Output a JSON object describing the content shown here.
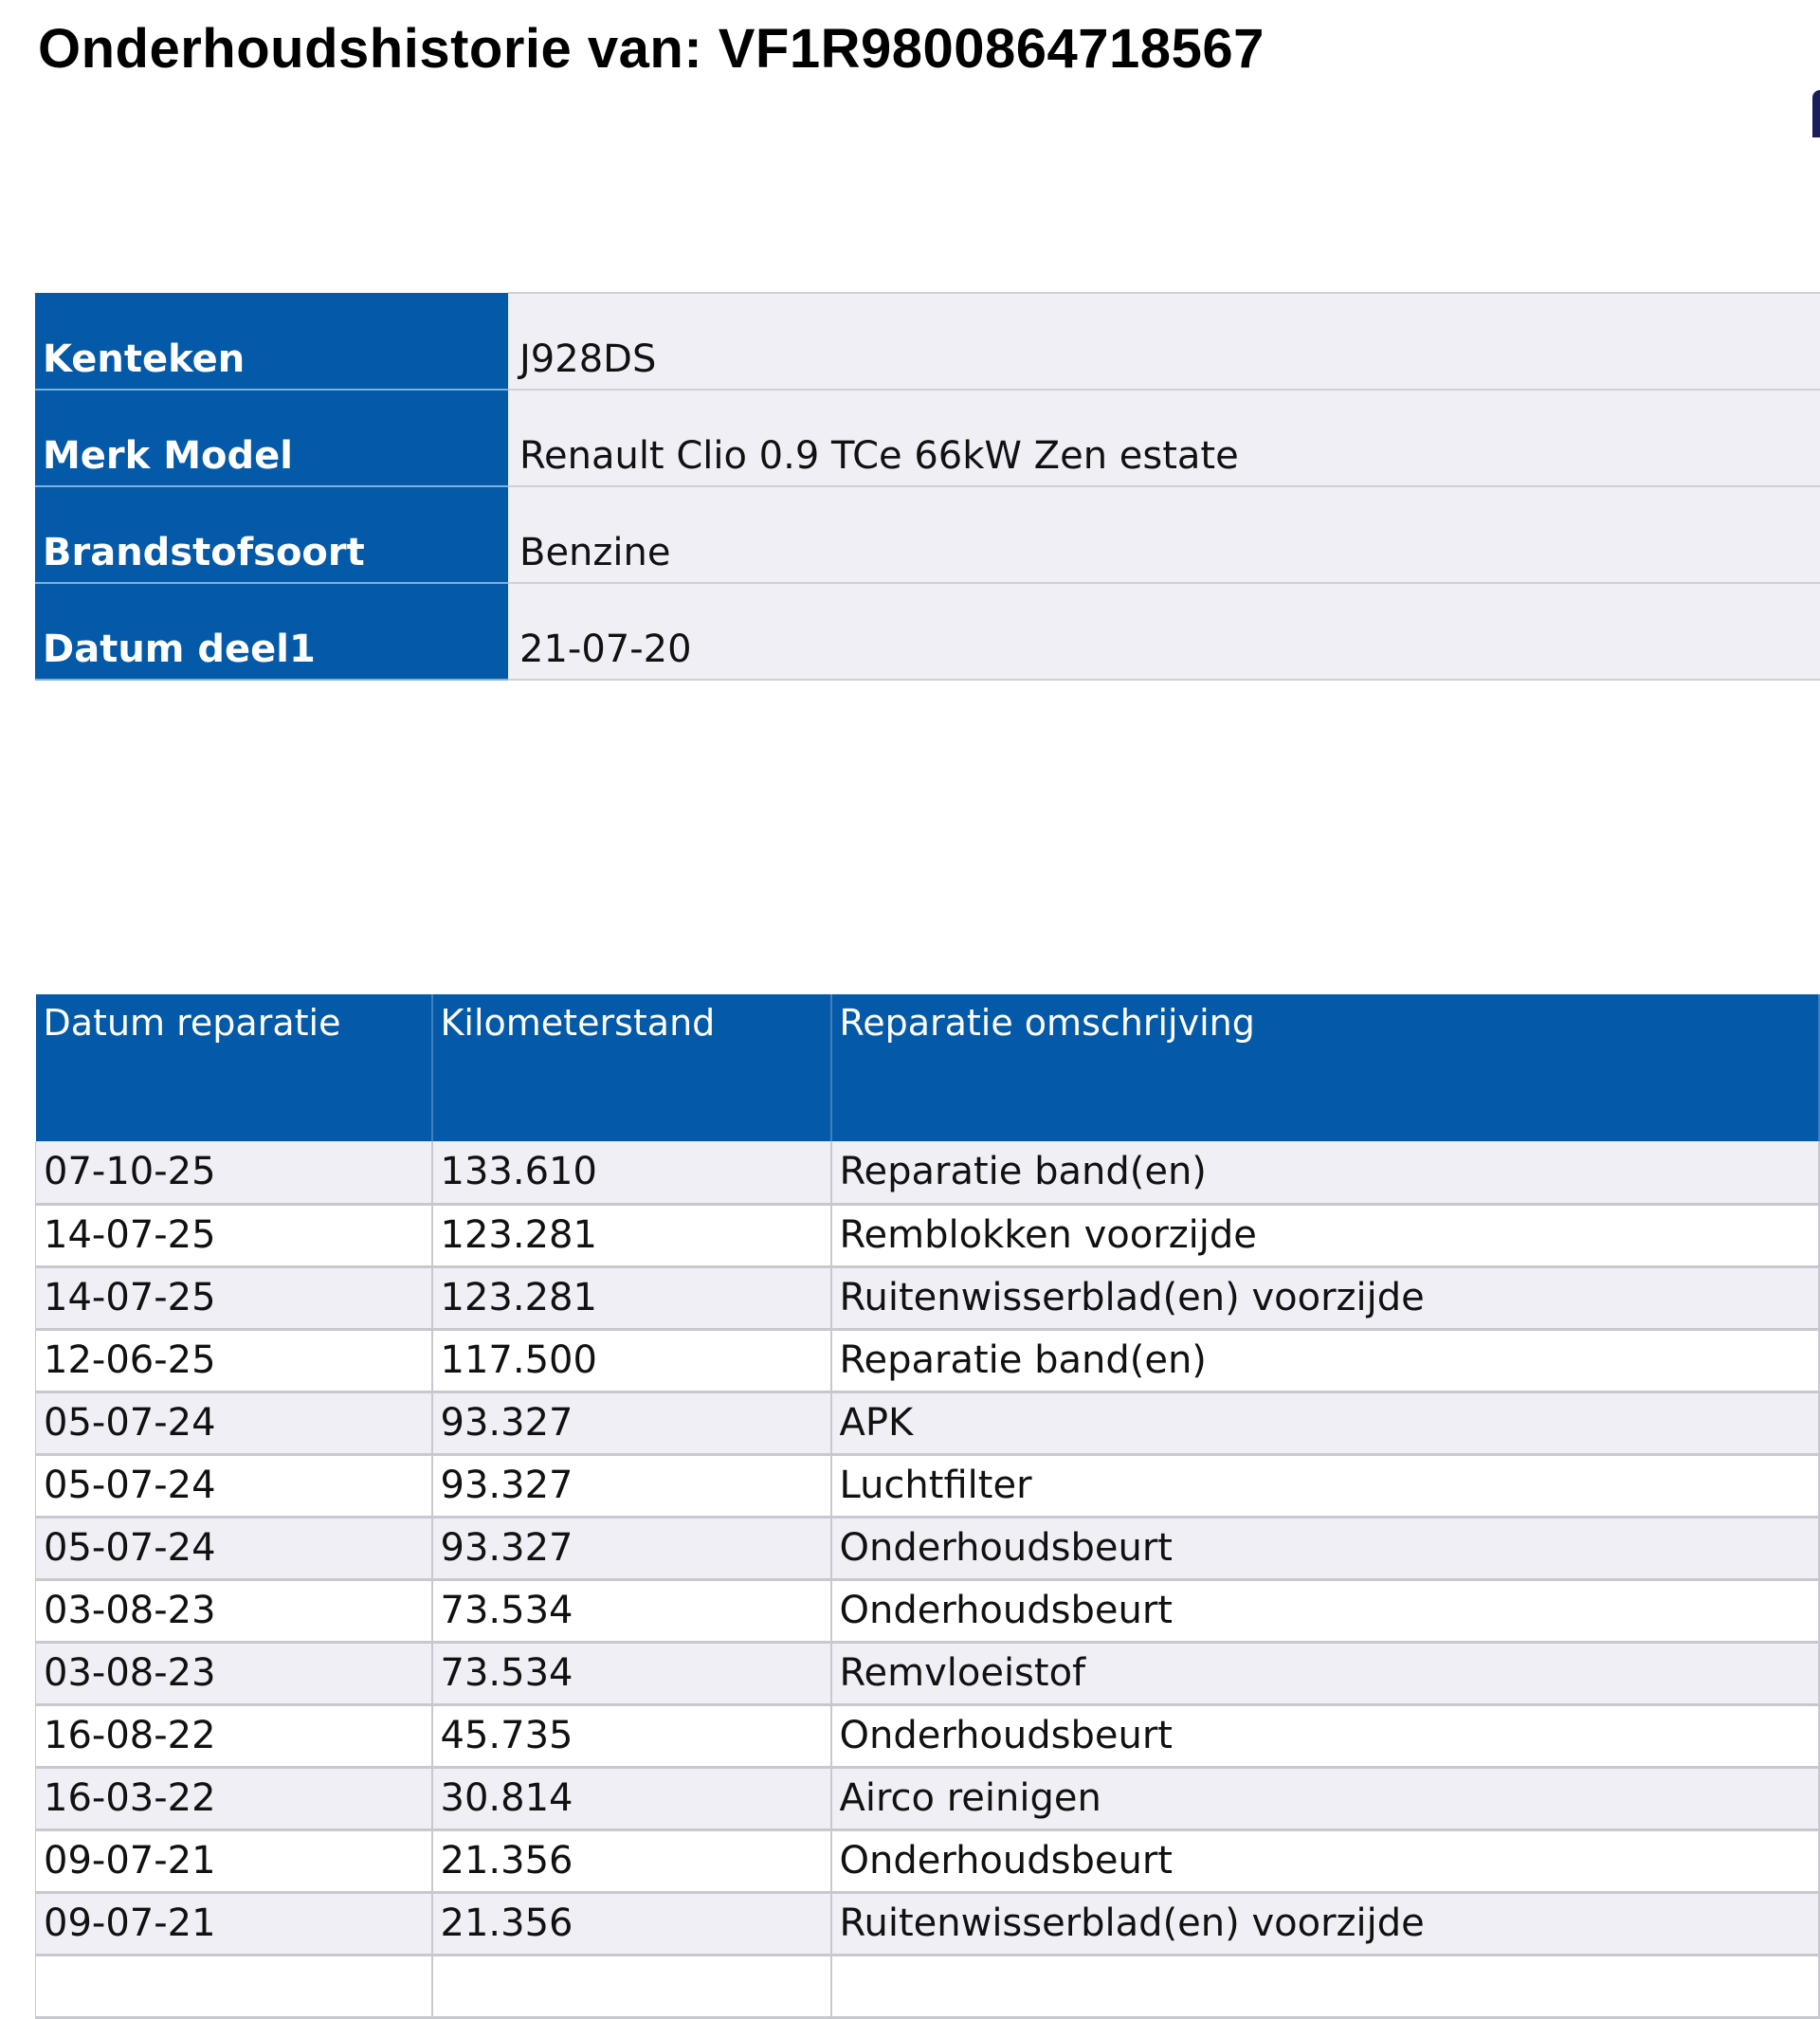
{
  "title": "Onderhoudshistorie van: VF1R9800864718567",
  "vehicle_info": [
    {
      "label": "Kenteken",
      "value": "J928DS"
    },
    {
      "label": "Merk Model",
      "value": "Renault Clio 0.9 TCe 66kW Zen estate"
    },
    {
      "label": "Brandstofsoort",
      "value": "Benzine"
    },
    {
      "label": "Datum deel1",
      "value": "21-07-20"
    }
  ],
  "repairs": {
    "headers": [
      "Datum reparatie",
      "Kilometerstand",
      "Reparatie omschrijving"
    ],
    "rows": [
      [
        "07-10-25",
        "133.610",
        "Reparatie band(en)"
      ],
      [
        "14-07-25",
        "123.281",
        "Remblokken voorzijde"
      ],
      [
        "14-07-25",
        "123.281",
        "Ruitenwisserblad(en) voorzijde"
      ],
      [
        "12-06-25",
        "117.500",
        "Reparatie band(en)"
      ],
      [
        "05-07-24",
        "93.327",
        "APK"
      ],
      [
        "05-07-24",
        "93.327",
        "Luchtfilter"
      ],
      [
        "05-07-24",
        "93.327",
        "Onderhoudsbeurt"
      ],
      [
        "03-08-23",
        "73.534",
        "Onderhoudsbeurt"
      ],
      [
        "03-08-23",
        "73.534",
        "Remvloeistof"
      ],
      [
        "16-08-22",
        "45.735",
        "Onderhoudsbeurt"
      ],
      [
        "16-03-22",
        "30.814",
        "Airco reinigen"
      ],
      [
        "09-07-21",
        "21.356",
        "Onderhoudsbeurt"
      ],
      [
        "09-07-21",
        "21.356",
        "Ruitenwisserblad(en) voorzijde"
      ],
      [
        "",
        "",
        ""
      ]
    ]
  },
  "colors": {
    "header_blue": "#045aa8",
    "row_gray": "#efeff5"
  }
}
